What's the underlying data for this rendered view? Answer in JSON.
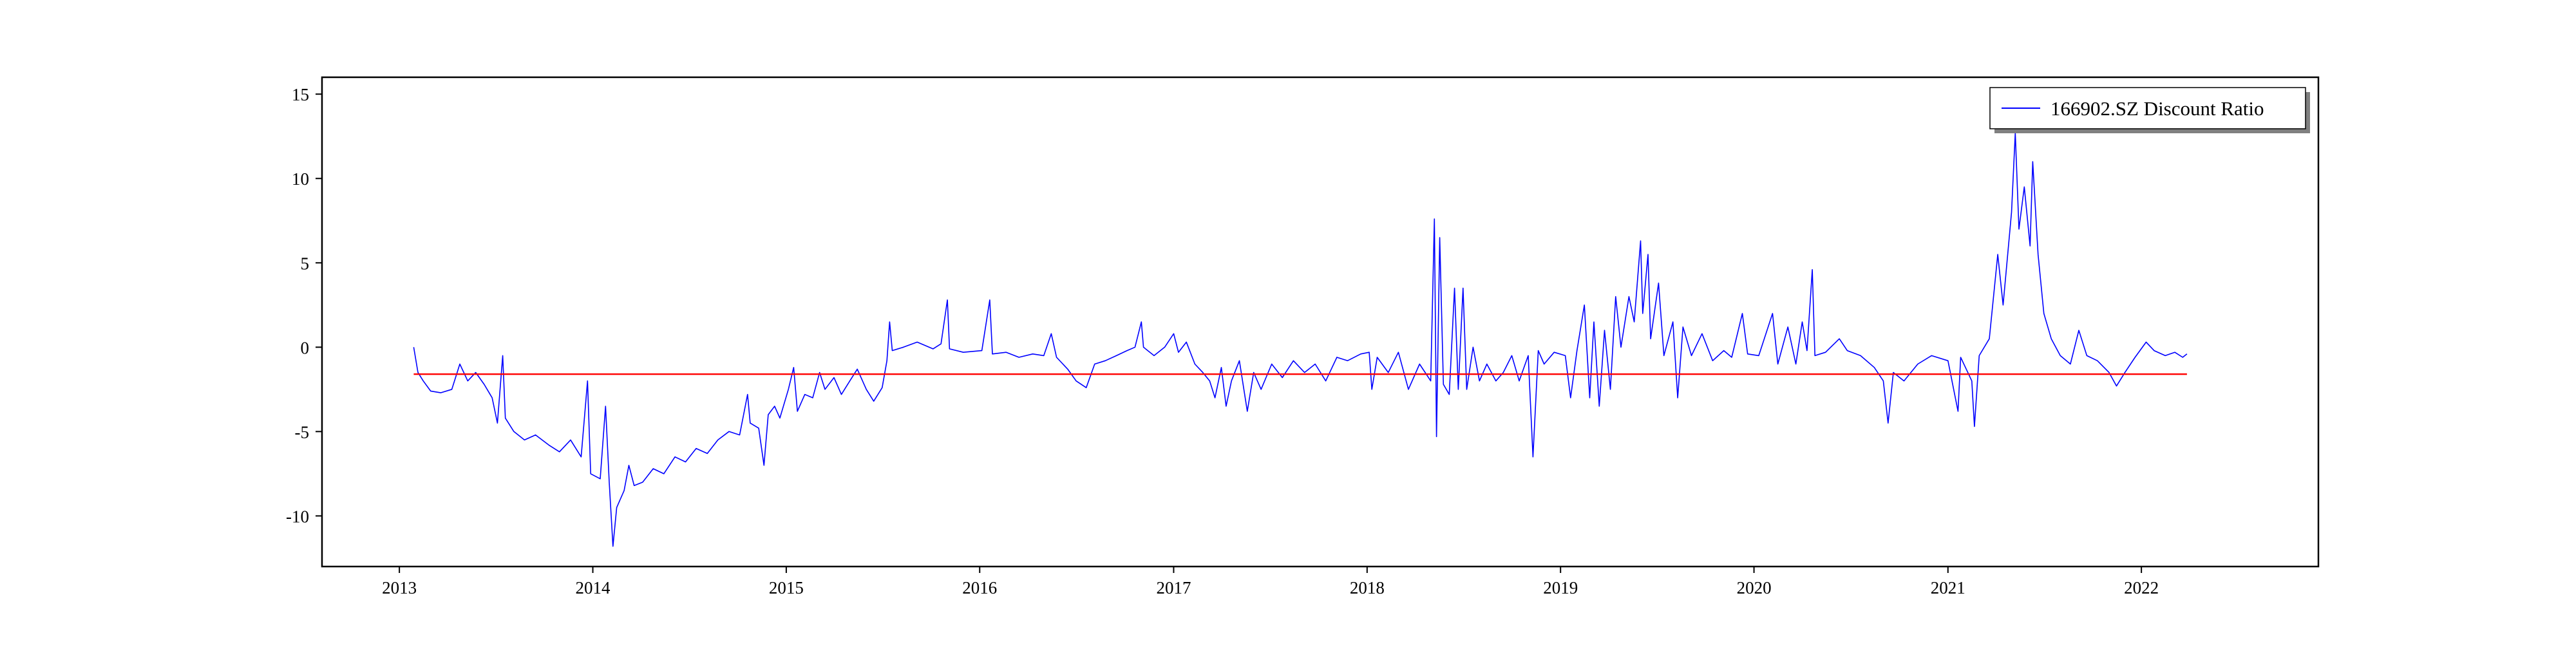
{
  "chart_data": {
    "type": "line",
    "title": "",
    "xlabel": "",
    "ylabel": "",
    "x_range": [
      "2012-08-08",
      "2022-12-01"
    ],
    "ylim": [
      -13,
      16
    ],
    "x_ticks": [
      "2013",
      "2014",
      "2015",
      "2016",
      "2017",
      "2018",
      "2019",
      "2020",
      "2021",
      "2022"
    ],
    "y_ticks": [
      15,
      10,
      5,
      0,
      -5,
      -10
    ],
    "grid": false,
    "legend": {
      "placement": "upper-right",
      "entries": [
        "166902.SZ Discount Ratio"
      ]
    },
    "series": [
      {
        "name": "166902.SZ Discount Ratio",
        "color": "#0000ff",
        "points": [
          [
            "2013-01-28",
            0.0
          ],
          [
            "2013-02-05",
            -1.5
          ],
          [
            "2013-02-15",
            -2.0
          ],
          [
            "2013-03-01",
            -2.6
          ],
          [
            "2013-03-20",
            -2.7
          ],
          [
            "2013-04-10",
            -2.5
          ],
          [
            "2013-04-25",
            -1.0
          ],
          [
            "2013-05-10",
            -2.0
          ],
          [
            "2013-05-25",
            -1.5
          ],
          [
            "2013-06-10",
            -2.2
          ],
          [
            "2013-06-25",
            -3.0
          ],
          [
            "2013-07-05",
            -4.5
          ],
          [
            "2013-07-15",
            -0.5
          ],
          [
            "2013-07-20",
            -4.2
          ],
          [
            "2013-08-05",
            -5.0
          ],
          [
            "2013-08-25",
            -5.5
          ],
          [
            "2013-09-15",
            -5.2
          ],
          [
            "2013-10-10",
            -5.8
          ],
          [
            "2013-10-30",
            -6.2
          ],
          [
            "2013-11-20",
            -5.5
          ],
          [
            "2013-12-10",
            -6.5
          ],
          [
            "2013-12-22",
            -2.0
          ],
          [
            "2013-12-28",
            -7.5
          ],
          [
            "2014-01-15",
            -7.8
          ],
          [
            "2014-01-25",
            -3.5
          ],
          [
            "2014-02-01",
            -8.0
          ],
          [
            "2014-02-08",
            -11.8
          ],
          [
            "2014-02-15",
            -9.5
          ],
          [
            "2014-03-01",
            -8.5
          ],
          [
            "2014-03-10",
            -7.0
          ],
          [
            "2014-03-20",
            -8.2
          ],
          [
            "2014-04-05",
            -8.0
          ],
          [
            "2014-04-25",
            -7.2
          ],
          [
            "2014-05-15",
            -7.5
          ],
          [
            "2014-06-05",
            -6.5
          ],
          [
            "2014-06-25",
            -6.8
          ],
          [
            "2014-07-15",
            -6.0
          ],
          [
            "2014-08-05",
            -6.3
          ],
          [
            "2014-08-25",
            -5.5
          ],
          [
            "2014-09-15",
            -5.0
          ],
          [
            "2014-10-05",
            -5.2
          ],
          [
            "2014-10-20",
            -2.8
          ],
          [
            "2014-10-25",
            -4.5
          ],
          [
            "2014-11-10",
            -4.8
          ],
          [
            "2014-11-20",
            -7.0
          ],
          [
            "2014-11-28",
            -4.0
          ],
          [
            "2014-12-10",
            -3.5
          ],
          [
            "2014-12-20",
            -4.2
          ],
          [
            "2015-01-05",
            -2.5
          ],
          [
            "2015-01-15",
            -1.2
          ],
          [
            "2015-01-22",
            -3.8
          ],
          [
            "2015-02-05",
            -2.8
          ],
          [
            "2015-02-20",
            -3.0
          ],
          [
            "2015-03-05",
            -1.5
          ],
          [
            "2015-03-15",
            -2.5
          ],
          [
            "2015-04-01",
            -1.8
          ],
          [
            "2015-04-15",
            -2.8
          ],
          [
            "2015-05-01",
            -2.0
          ],
          [
            "2015-05-15",
            -1.3
          ],
          [
            "2015-06-01",
            -2.5
          ],
          [
            "2015-06-15",
            -3.2
          ],
          [
            "2015-07-01",
            -2.4
          ],
          [
            "2015-07-10",
            -0.8
          ],
          [
            "2015-07-15",
            1.5
          ],
          [
            "2015-07-20",
            -0.2
          ],
          [
            "2015-08-10",
            0.0
          ],
          [
            "2015-09-05",
            0.3
          ],
          [
            "2015-10-05",
            -0.1
          ],
          [
            "2015-10-20",
            0.2
          ],
          [
            "2015-11-01",
            2.8
          ],
          [
            "2015-11-05",
            -0.1
          ],
          [
            "2015-12-01",
            -0.3
          ],
          [
            "2016-01-05",
            -0.2
          ],
          [
            "2016-01-20",
            2.8
          ],
          [
            "2016-01-25",
            -0.4
          ],
          [
            "2016-02-20",
            -0.3
          ],
          [
            "2016-03-15",
            -0.6
          ],
          [
            "2016-04-10",
            -0.4
          ],
          [
            "2016-05-01",
            -0.5
          ],
          [
            "2016-05-15",
            0.8
          ],
          [
            "2016-05-25",
            -0.6
          ],
          [
            "2016-06-15",
            -1.3
          ],
          [
            "2016-07-01",
            -2.0
          ],
          [
            "2016-07-20",
            -2.4
          ],
          [
            "2016-08-05",
            -1.0
          ],
          [
            "2016-08-25",
            -0.8
          ],
          [
            "2016-09-15",
            -0.5
          ],
          [
            "2016-10-05",
            -0.2
          ],
          [
            "2016-10-20",
            0.0
          ],
          [
            "2016-11-01",
            1.5
          ],
          [
            "2016-11-05",
            0.0
          ],
          [
            "2016-11-25",
            -0.5
          ],
          [
            "2016-12-15",
            0.0
          ],
          [
            "2017-01-01",
            0.8
          ],
          [
            "2017-01-10",
            -0.3
          ],
          [
            "2017-01-25",
            0.3
          ],
          [
            "2017-02-10",
            -1.0
          ],
          [
            "2017-02-25",
            -1.5
          ],
          [
            "2017-03-10",
            -2.0
          ],
          [
            "2017-03-20",
            -3.0
          ],
          [
            "2017-04-01",
            -1.2
          ],
          [
            "2017-04-10",
            -3.5
          ],
          [
            "2017-04-20",
            -2.0
          ],
          [
            "2017-05-05",
            -0.8
          ],
          [
            "2017-05-20",
            -3.8
          ],
          [
            "2017-06-01",
            -1.5
          ],
          [
            "2017-06-15",
            -2.5
          ],
          [
            "2017-07-05",
            -1.0
          ],
          [
            "2017-07-25",
            -1.8
          ],
          [
            "2017-08-15",
            -0.8
          ],
          [
            "2017-09-05",
            -1.5
          ],
          [
            "2017-09-25",
            -1.0
          ],
          [
            "2017-10-15",
            -2.0
          ],
          [
            "2017-11-05",
            -0.6
          ],
          [
            "2017-11-25",
            -0.8
          ],
          [
            "2017-12-20",
            -0.4
          ],
          [
            "2018-01-05",
            -0.3
          ],
          [
            "2018-01-10",
            -2.5
          ],
          [
            "2018-01-20",
            -0.6
          ],
          [
            "2018-02-10",
            -1.5
          ],
          [
            "2018-03-01",
            -0.3
          ],
          [
            "2018-03-20",
            -2.5
          ],
          [
            "2018-04-10",
            -1.0
          ],
          [
            "2018-05-01",
            -2.0
          ],
          [
            "2018-05-08",
            7.6
          ],
          [
            "2018-05-12",
            -5.3
          ],
          [
            "2018-05-18",
            6.5
          ],
          [
            "2018-05-25",
            -2.2
          ],
          [
            "2018-06-05",
            -2.8
          ],
          [
            "2018-06-15",
            3.5
          ],
          [
            "2018-06-22",
            -2.5
          ],
          [
            "2018-07-01",
            3.5
          ],
          [
            "2018-07-08",
            -2.5
          ],
          [
            "2018-07-20",
            0.0
          ],
          [
            "2018-08-01",
            -2.0
          ],
          [
            "2018-08-15",
            -1.0
          ],
          [
            "2018-09-01",
            -2.0
          ],
          [
            "2018-09-15",
            -1.5
          ],
          [
            "2018-10-01",
            -0.5
          ],
          [
            "2018-10-15",
            -2.0
          ],
          [
            "2018-11-01",
            -0.5
          ],
          [
            "2018-11-10",
            -6.5
          ],
          [
            "2018-11-20",
            -0.2
          ],
          [
            "2018-12-01",
            -1.0
          ],
          [
            "2018-12-20",
            -0.3
          ],
          [
            "2019-01-10",
            -0.5
          ],
          [
            "2019-01-20",
            -3.0
          ],
          [
            "2019-02-01",
            -0.2
          ],
          [
            "2019-02-15",
            2.5
          ],
          [
            "2019-02-25",
            -3.0
          ],
          [
            "2019-03-05",
            1.5
          ],
          [
            "2019-03-15",
            -3.5
          ],
          [
            "2019-03-25",
            1.0
          ],
          [
            "2019-04-05",
            -2.5
          ],
          [
            "2019-04-15",
            3.0
          ],
          [
            "2019-04-25",
            0.0
          ],
          [
            "2019-05-10",
            3.0
          ],
          [
            "2019-05-20",
            1.5
          ],
          [
            "2019-06-01",
            6.3
          ],
          [
            "2019-06-05",
            2.0
          ],
          [
            "2019-06-15",
            5.5
          ],
          [
            "2019-06-20",
            0.5
          ],
          [
            "2019-07-05",
            3.8
          ],
          [
            "2019-07-15",
            -0.5
          ],
          [
            "2019-08-01",
            1.5
          ],
          [
            "2019-08-10",
            -3.0
          ],
          [
            "2019-08-20",
            1.2
          ],
          [
            "2019-09-05",
            -0.5
          ],
          [
            "2019-09-25",
            0.8
          ],
          [
            "2019-10-15",
            -0.8
          ],
          [
            "2019-11-05",
            -0.2
          ],
          [
            "2019-11-20",
            -0.6
          ],
          [
            "2019-12-10",
            2.0
          ],
          [
            "2019-12-20",
            -0.4
          ],
          [
            "2020-01-10",
            -0.5
          ],
          [
            "2020-02-05",
            2.0
          ],
          [
            "2020-02-15",
            -1.0
          ],
          [
            "2020-03-05",
            1.2
          ],
          [
            "2020-03-20",
            -1.0
          ],
          [
            "2020-04-01",
            1.5
          ],
          [
            "2020-04-10",
            -0.2
          ],
          [
            "2020-04-20",
            4.6
          ],
          [
            "2020-04-25",
            -0.5
          ],
          [
            "2020-05-15",
            -0.3
          ],
          [
            "2020-06-10",
            0.5
          ],
          [
            "2020-06-25",
            -0.2
          ],
          [
            "2020-07-20",
            -0.5
          ],
          [
            "2020-08-15",
            -1.2
          ],
          [
            "2020-09-01",
            -2.0
          ],
          [
            "2020-09-10",
            -4.5
          ],
          [
            "2020-09-20",
            -1.5
          ],
          [
            "2020-10-10",
            -2.0
          ],
          [
            "2020-11-05",
            -1.0
          ],
          [
            "2020-12-01",
            -0.5
          ],
          [
            "2021-01-01",
            -0.8
          ],
          [
            "2021-01-20",
            -3.8
          ],
          [
            "2021-01-25",
            -0.6
          ],
          [
            "2021-02-15",
            -2.0
          ],
          [
            "2021-02-20",
            -4.7
          ],
          [
            "2021-03-01",
            -0.5
          ],
          [
            "2021-03-20",
            0.5
          ],
          [
            "2021-04-05",
            5.5
          ],
          [
            "2021-04-15",
            2.5
          ],
          [
            "2021-05-01",
            8.0
          ],
          [
            "2021-05-08",
            12.7
          ],
          [
            "2021-05-15",
            7.0
          ],
          [
            "2021-05-25",
            9.5
          ],
          [
            "2021-06-05",
            6.0
          ],
          [
            "2021-06-10",
            11.0
          ],
          [
            "2021-06-20",
            5.5
          ],
          [
            "2021-07-01",
            2.0
          ],
          [
            "2021-07-15",
            0.5
          ],
          [
            "2021-08-01",
            -0.5
          ],
          [
            "2021-08-20",
            -1.0
          ],
          [
            "2021-09-05",
            1.0
          ],
          [
            "2021-09-20",
            -0.5
          ],
          [
            "2021-10-10",
            -0.8
          ],
          [
            "2021-11-01",
            -1.5
          ],
          [
            "2021-11-15",
            -2.3
          ],
          [
            "2021-12-01",
            -1.5
          ],
          [
            "2021-12-20",
            -0.6
          ],
          [
            "2022-01-10",
            0.3
          ],
          [
            "2022-01-25",
            -0.2
          ],
          [
            "2022-02-15",
            -0.5
          ],
          [
            "2022-03-05",
            -0.3
          ],
          [
            "2022-03-20",
            -0.6
          ],
          [
            "2022-03-28",
            -0.4
          ]
        ]
      },
      {
        "color": "#ff0000",
        "points": [
          [
            "2013-01-28",
            -1.6
          ],
          [
            "2022-03-28",
            -1.6
          ]
        ]
      }
    ]
  }
}
